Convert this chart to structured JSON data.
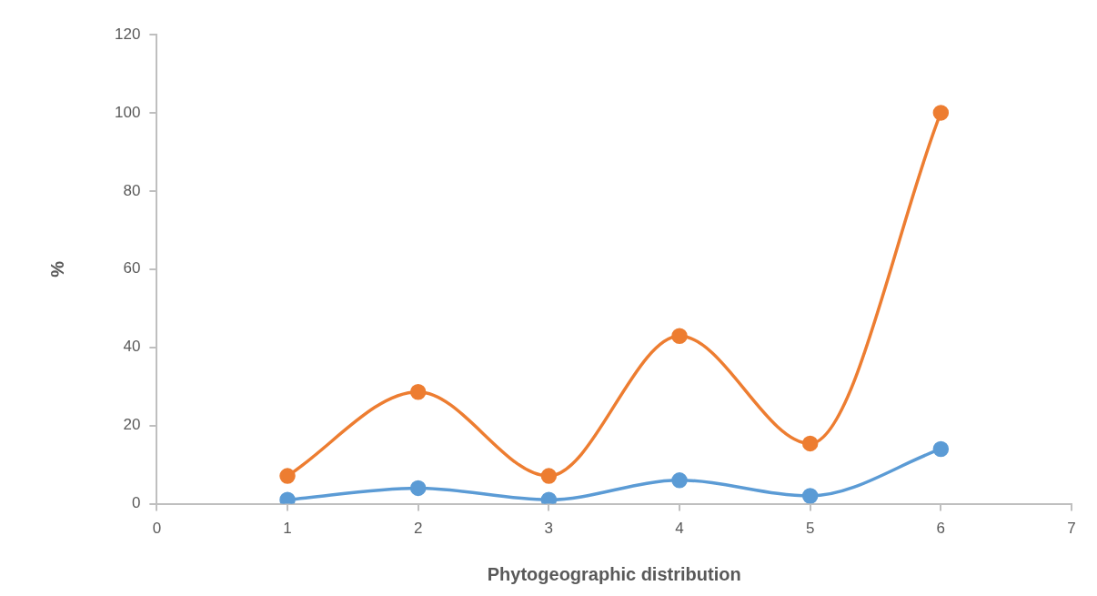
{
  "chart_data": {
    "type": "line",
    "xlabel": "Phytogeographic distribution",
    "ylabel": "%",
    "x": [
      1,
      2,
      3,
      4,
      5,
      6
    ],
    "series": [
      {
        "color": "#5b9bd5",
        "values": [
          1,
          4,
          1,
          6,
          2,
          14
        ]
      },
      {
        "color": "#ed7d31",
        "values": [
          7.1,
          28.6,
          7.1,
          42.9,
          15.4,
          100
        ]
      }
    ],
    "xlim": [
      0,
      7
    ],
    "xticks": [
      0,
      1,
      2,
      3,
      4,
      5,
      6,
      7
    ],
    "ylim": [
      0,
      120
    ],
    "yticks": [
      0,
      20,
      40,
      60,
      80,
      100,
      120
    ],
    "grid": false,
    "legend": false,
    "marker": "circle",
    "line_style": "solid"
  }
}
